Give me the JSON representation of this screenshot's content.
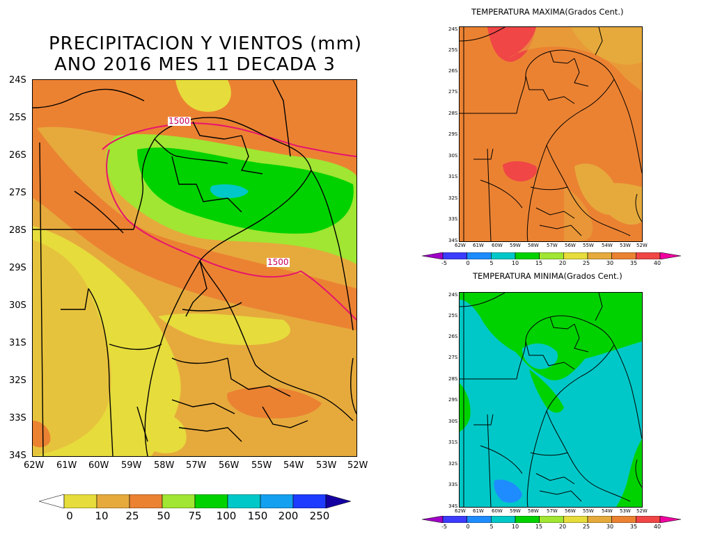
{
  "main": {
    "title_line1": "PRECIPITACION Y VIENTOS (mm)",
    "title_line2": "ANO 2016 MES 11 DECADA 3",
    "lat_labels": [
      "24S",
      "25S",
      "26S",
      "27S",
      "28S",
      "29S",
      "30S",
      "31S",
      "32S",
      "33S",
      "34S"
    ],
    "lon_labels": [
      "62W",
      "61W",
      "60W",
      "59W",
      "58W",
      "57W",
      "56W",
      "55W",
      "54W",
      "53W",
      "52W"
    ],
    "contour_labels": [
      "1500",
      "1500"
    ],
    "colorbar": {
      "labels": [
        "0",
        "10",
        "25",
        "50",
        "75",
        "100",
        "150",
        "200",
        "250"
      ],
      "colors": [
        "#ffffff",
        "#e6dc3c",
        "#e6aa3c",
        "#eb8232",
        "#a0e632",
        "#00d200",
        "#00c8c8",
        "#14a0f0",
        "#1e3cff",
        "#1400a0"
      ]
    }
  },
  "tmax": {
    "title": "TEMPERATURA MAXIMA(Grados Cent.)",
    "lat_labels": [
      "24S",
      "25S",
      "26S",
      "27S",
      "28S",
      "29S",
      "30S",
      "31S",
      "32S",
      "33S",
      "34S"
    ],
    "lon_labels": [
      "62W",
      "61W",
      "60W",
      "59W",
      "58W",
      "57W",
      "56W",
      "55W",
      "54W",
      "53W",
      "52W"
    ],
    "colorbar": {
      "labels": [
        "-5",
        "0",
        "5",
        "10",
        "15",
        "20",
        "25",
        "30",
        "35",
        "40"
      ],
      "colors": [
        "#a000c8",
        "#3c3cff",
        "#1e8cff",
        "#00c8c8",
        "#00d200",
        "#a0e632",
        "#e6dc3c",
        "#e6aa3c",
        "#eb8232",
        "#f04646",
        "#f000a0"
      ]
    }
  },
  "tmin": {
    "title": "TEMPERATURA MINIMA(Grados Cent.)",
    "lat_labels": [
      "24S",
      "25S",
      "26S",
      "27S",
      "28S",
      "29S",
      "30S",
      "31S",
      "32S",
      "33S",
      "34S"
    ],
    "lon_labels": [
      "62W",
      "61W",
      "60W",
      "59W",
      "58W",
      "57W",
      "56W",
      "55W",
      "54W",
      "53W",
      "52W"
    ],
    "colorbar": {
      "labels": [
        "-5",
        "0",
        "5",
        "10",
        "15",
        "20",
        "25",
        "30",
        "35",
        "40"
      ],
      "colors": [
        "#a000c8",
        "#3c3cff",
        "#1e8cff",
        "#00c8c8",
        "#00d200",
        "#a0e632",
        "#e6dc3c",
        "#e6aa3c",
        "#eb8232",
        "#f04646",
        "#f000a0"
      ]
    }
  }
}
